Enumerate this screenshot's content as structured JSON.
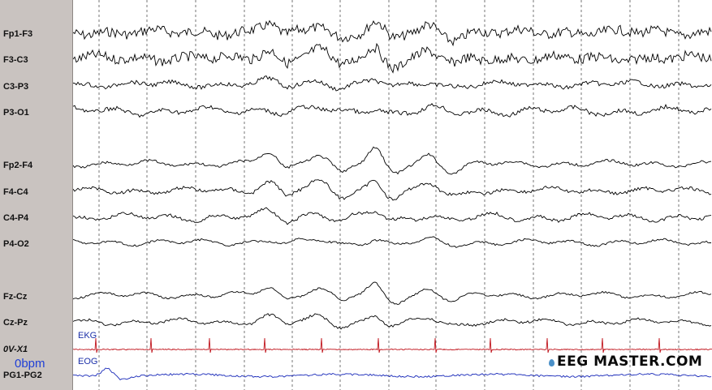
{
  "channels": [
    {
      "label": "Fp1-F3"
    },
    {
      "label": "F3-C3"
    },
    {
      "label": "C3-P3"
    },
    {
      "label": "P3-O1"
    },
    {
      "label": "Fp2-F4"
    },
    {
      "label": "F4-C4"
    },
    {
      "label": "C4-P4"
    },
    {
      "label": "P4-O2"
    },
    {
      "label": "Fz-Cz"
    },
    {
      "label": "Cz-Pz"
    },
    {
      "label": "0V-X1"
    },
    {
      "label": "PG1-PG2"
    }
  ],
  "heart_rate": "0bpm",
  "tags": {
    "ekg": "EKG",
    "eog": "EOG"
  },
  "logo": "EEG MASTER.COM",
  "colors": {
    "eeg": "#000000",
    "ekg": "#c0141c",
    "eog": "#1526b8",
    "sidebar": "#c9c3c0",
    "grid": "#555555"
  }
}
